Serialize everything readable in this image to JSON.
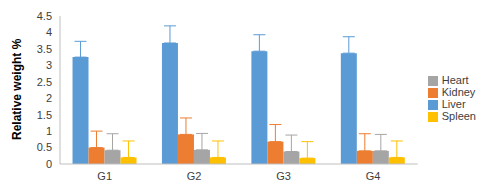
{
  "chart_data": {
    "type": "bar",
    "y_label": "Relative weight %",
    "categories": [
      "G1",
      "G2",
      "G3",
      "G4"
    ],
    "series": [
      {
        "name": "Liver",
        "color": "#5b9bd5",
        "values": [
          3.25,
          3.68,
          3.43,
          3.37
        ],
        "errors": [
          0.48,
          0.52,
          0.5,
          0.5
        ]
      },
      {
        "name": "Kidney",
        "color": "#ed7d31",
        "values": [
          0.5,
          0.9,
          0.68,
          0.4
        ],
        "errors": [
          0.5,
          0.5,
          0.52,
          0.52
        ]
      },
      {
        "name": "Heart",
        "color": "#a5a5a5",
        "values": [
          0.42,
          0.43,
          0.38,
          0.4
        ],
        "errors": [
          0.5,
          0.5,
          0.5,
          0.5
        ]
      },
      {
        "name": "Spleen",
        "color": "#ffc000",
        "values": [
          0.2,
          0.2,
          0.18,
          0.2
        ],
        "errors": [
          0.5,
          0.5,
          0.5,
          0.5
        ]
      }
    ],
    "ylim": [
      0,
      4.5
    ],
    "yticks": [
      0,
      0.5,
      1,
      1.5,
      2,
      2.5,
      3,
      3.5,
      4,
      4.5
    ],
    "grid": false,
    "legend": "right"
  }
}
